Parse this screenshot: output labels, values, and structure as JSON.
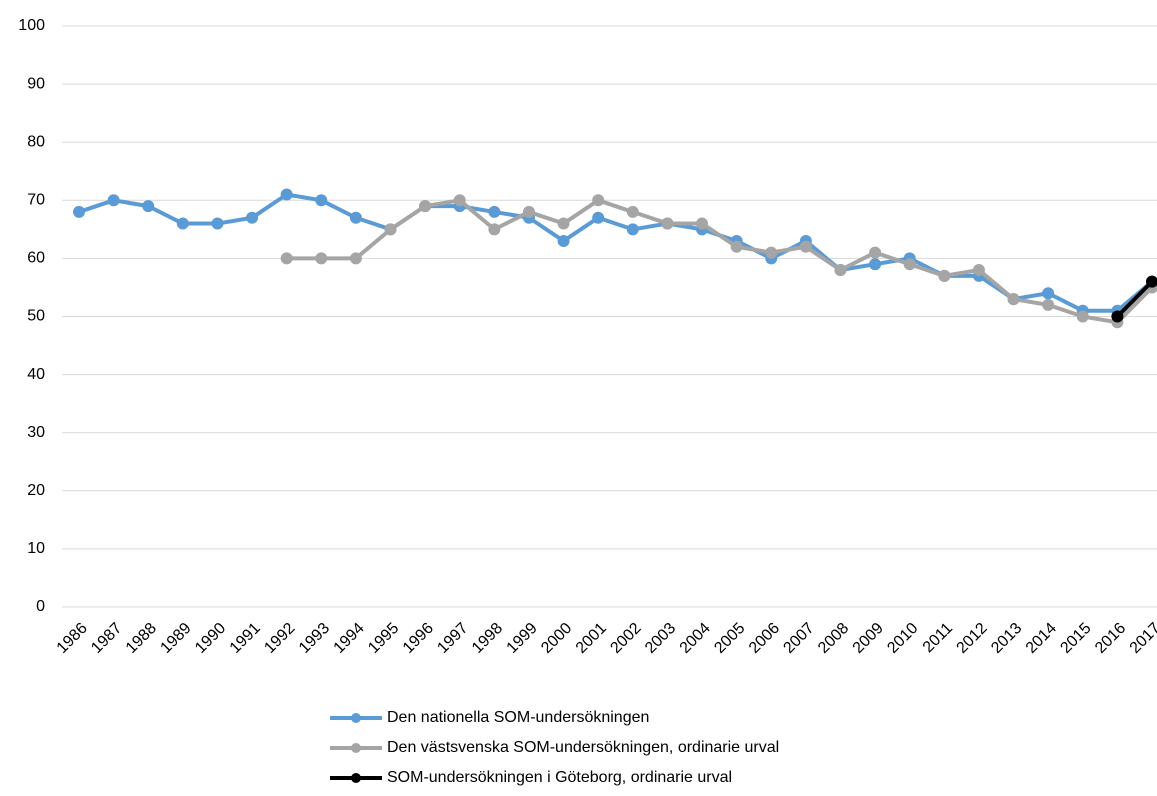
{
  "chart_data": {
    "type": "line",
    "categories": [
      "1986",
      "1987",
      "1988",
      "1989",
      "1990",
      "1991",
      "1992",
      "1993",
      "1994",
      "1995",
      "1996",
      "1997",
      "1998",
      "1999",
      "2000",
      "2001",
      "2002",
      "2003",
      "2004",
      "2005",
      "2006",
      "2007",
      "2008",
      "2009",
      "2010",
      "2011",
      "2012",
      "2013",
      "2014",
      "2015",
      "2016",
      "2017"
    ],
    "series": [
      {
        "name": "Den nationella SOM-undersökningen",
        "color": "#5b9bd5",
        "values": [
          68,
          70,
          69,
          66,
          66,
          67,
          71,
          70,
          67,
          65,
          69,
          69,
          68,
          67,
          63,
          67,
          65,
          66,
          65,
          63,
          60,
          63,
          58,
          59,
          60,
          57,
          57,
          53,
          54,
          51,
          51,
          56
        ]
      },
      {
        "name": "Den västsvenska SOM-undersökningen, ordinarie urval",
        "color": "#a5a5a5",
        "values": [
          null,
          null,
          null,
          null,
          null,
          null,
          60,
          60,
          60,
          65,
          69,
          70,
          65,
          68,
          66,
          70,
          68,
          66,
          66,
          62,
          61,
          62,
          58,
          61,
          59,
          57,
          58,
          53,
          52,
          50,
          49,
          55
        ]
      },
      {
        "name": "SOM-undersökningen i Göteborg, ordinarie urval",
        "color": "#000000",
        "values": [
          null,
          null,
          null,
          null,
          null,
          null,
          null,
          null,
          null,
          null,
          null,
          null,
          null,
          null,
          null,
          null,
          null,
          null,
          null,
          null,
          null,
          null,
          null,
          null,
          null,
          null,
          null,
          null,
          null,
          null,
          50,
          56
        ]
      }
    ],
    "ylim": [
      0,
      100
    ],
    "yticks": [
      0,
      10,
      20,
      30,
      40,
      50,
      60,
      70,
      80,
      90,
      100
    ],
    "grid": true
  }
}
